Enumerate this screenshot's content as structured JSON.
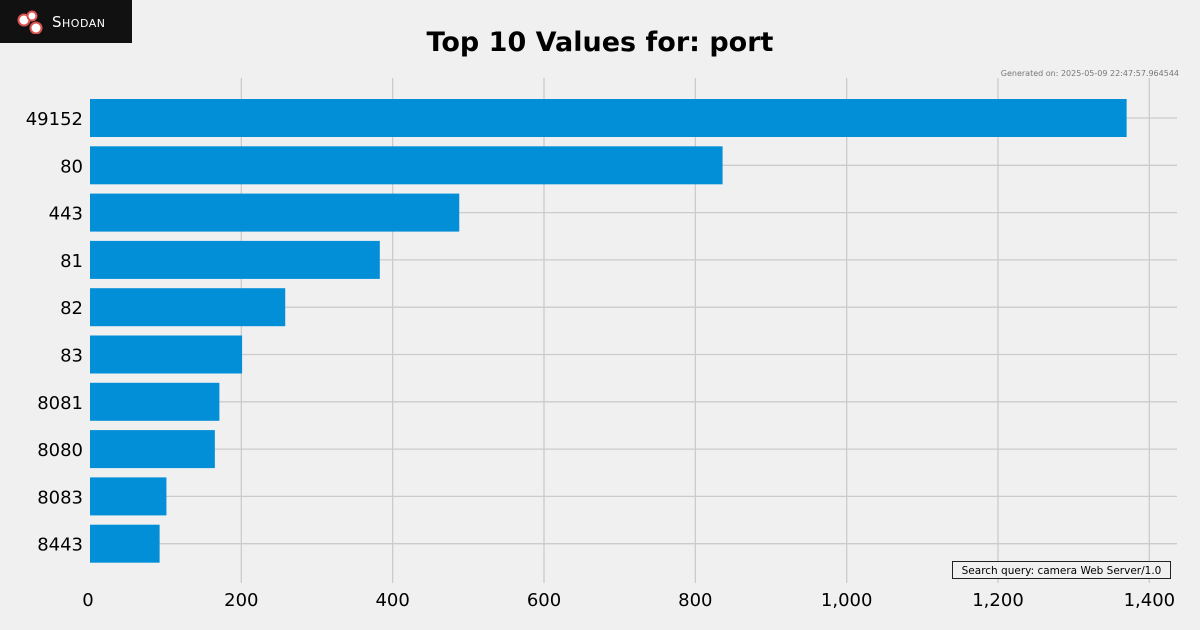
{
  "brand": {
    "name": "Shodan",
    "logo_icon": "shodan-logo-icon"
  },
  "generated": "Generated on: 2025-05-09 22:47:57.964544",
  "search_query": "Search query: camera Web Server/1.0",
  "colors": {
    "bar": "#038ed8",
    "grid": "#cbcbcb",
    "background": "#f0f0f0"
  },
  "chart_data": {
    "type": "bar",
    "orientation": "horizontal",
    "title": "Top 10 Values for: port",
    "xlabel": "",
    "ylabel": "",
    "categories": [
      "49152",
      "80",
      "443",
      "81",
      "82",
      "83",
      "8081",
      "8080",
      "8083",
      "8443"
    ],
    "values": [
      1370,
      836,
      488,
      383,
      258,
      201,
      171,
      165,
      101,
      92
    ],
    "xlim": [
      0,
      1440
    ],
    "xticks": [
      0,
      200,
      400,
      600,
      800,
      1000,
      1200,
      1400
    ],
    "xtick_labels": [
      "0",
      "200",
      "400",
      "600",
      "800",
      "1,000",
      "1,200",
      "1,400"
    ],
    "grid": true
  }
}
